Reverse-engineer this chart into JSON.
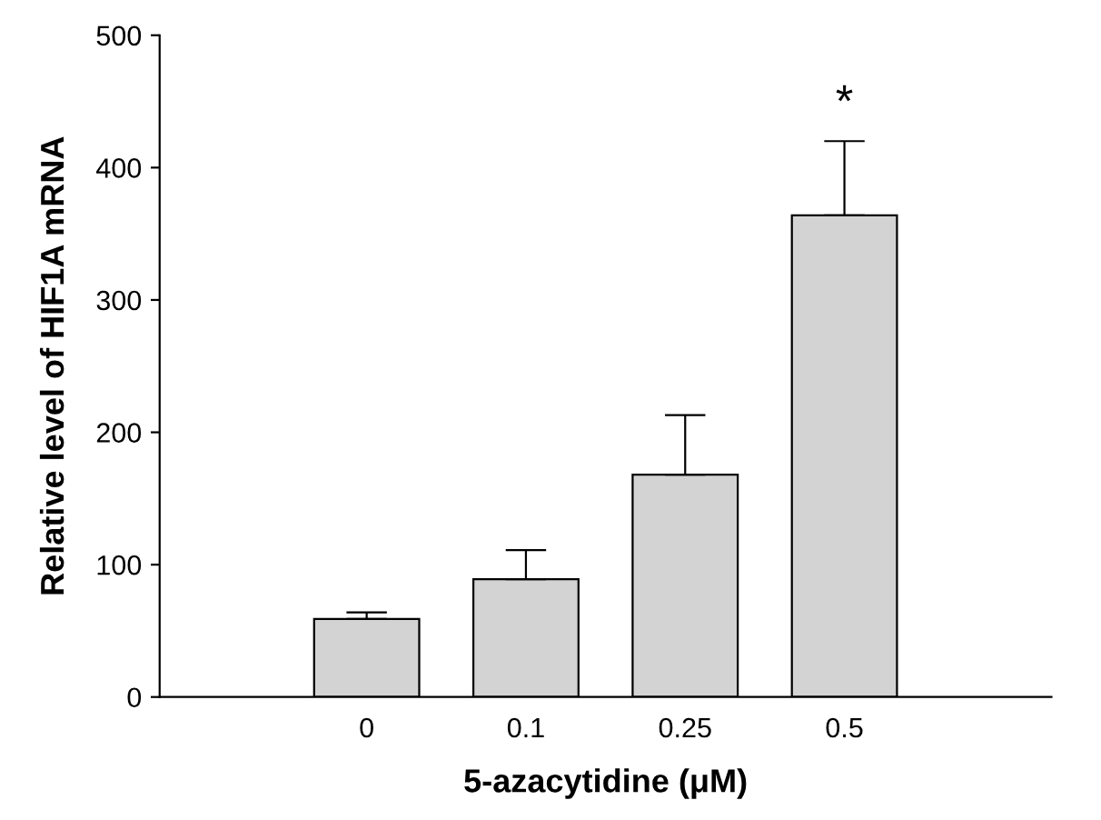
{
  "chart_data": {
    "type": "bar",
    "xlabel": "5-azacytidine (μM)",
    "ylabel": "Relative level of HIF1A mRNA",
    "categories": [
      "0",
      "0.1",
      "0.25",
      "0.5"
    ],
    "values": [
      59,
      89,
      168,
      364
    ],
    "errors": [
      [
        59,
        64
      ],
      [
        89,
        111
      ],
      [
        168,
        213
      ],
      [
        364,
        420
      ]
    ],
    "color": "#d3d3d3",
    "ylim": [
      0,
      500
    ],
    "yticks": [
      0,
      100,
      200,
      300,
      400,
      500
    ],
    "grid": false,
    "annotations": [
      {
        "text": "*",
        "x": "0.5",
        "y": 420
      }
    ]
  }
}
